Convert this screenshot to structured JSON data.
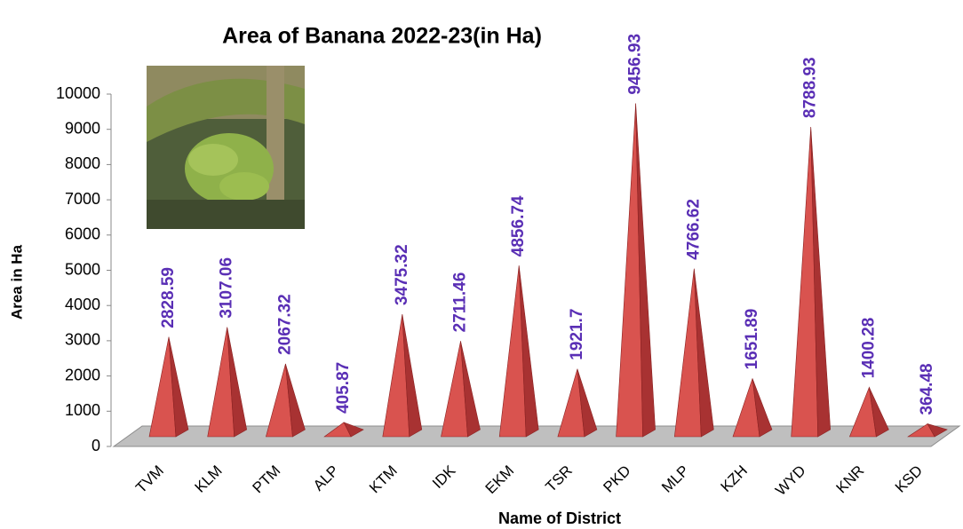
{
  "chart_data": {
    "type": "pyramid3d",
    "title": "Area of Banana  2022-23(in Ha)",
    "x_label": "Name of District",
    "y_label": "Area in Ha",
    "categories": [
      "TVM",
      "KLM",
      "PTM",
      "ALP",
      "KTM",
      "IDK",
      "EKM",
      "TSR",
      "PKD",
      "MLP",
      "KZH",
      "WYD",
      "KNR",
      "KSD"
    ],
    "values": [
      2828.59,
      3107.06,
      2067.32,
      405.87,
      3475.32,
      2711.46,
      4856.74,
      1921.7,
      9456.93,
      4766.62,
      1651.89,
      8788.93,
      1400.28,
      364.48
    ],
    "color": "#d9534f",
    "ylim": [
      0,
      10000
    ],
    "yticks": [
      0,
      1000,
      2000,
      3000,
      4000,
      5000,
      6000,
      7000,
      8000,
      9000,
      10000
    ]
  }
}
